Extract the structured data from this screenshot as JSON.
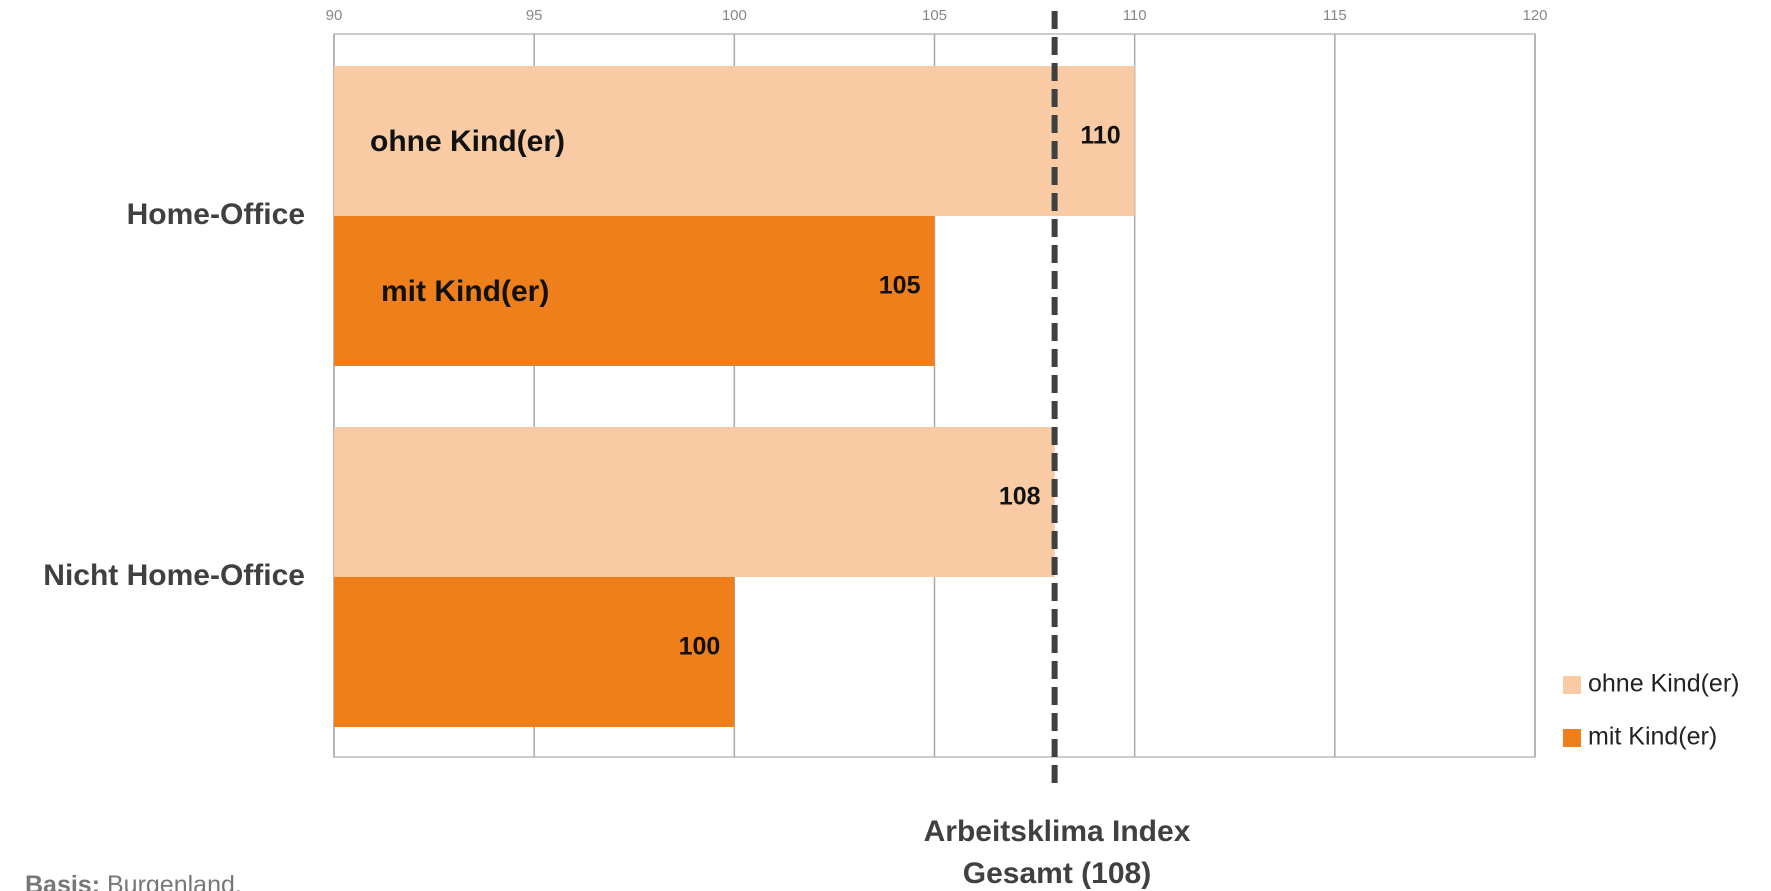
{
  "chart_data": {
    "type": "bar",
    "orientation": "horizontal",
    "categories": [
      "Home-Office",
      "Nicht Home-Office"
    ],
    "series": [
      {
        "name": "ohne Kind(er)",
        "color": "#f8cba4",
        "values": [
          110,
          108
        ]
      },
      {
        "name": "mit Kind(er)",
        "color": "#ee7f1b",
        "values": [
          105,
          100
        ]
      }
    ],
    "xlim": [
      90,
      120
    ],
    "xticks": [
      90,
      95,
      100,
      105,
      110,
      115,
      120
    ],
    "grid": true,
    "legend": "right",
    "reference_line": {
      "value": 108,
      "label": [
        "Arbeitsklima Index",
        "Gesamt (108)"
      ]
    },
    "footnote": {
      "label": "Basis:",
      "text": "Burgenland."
    }
  }
}
